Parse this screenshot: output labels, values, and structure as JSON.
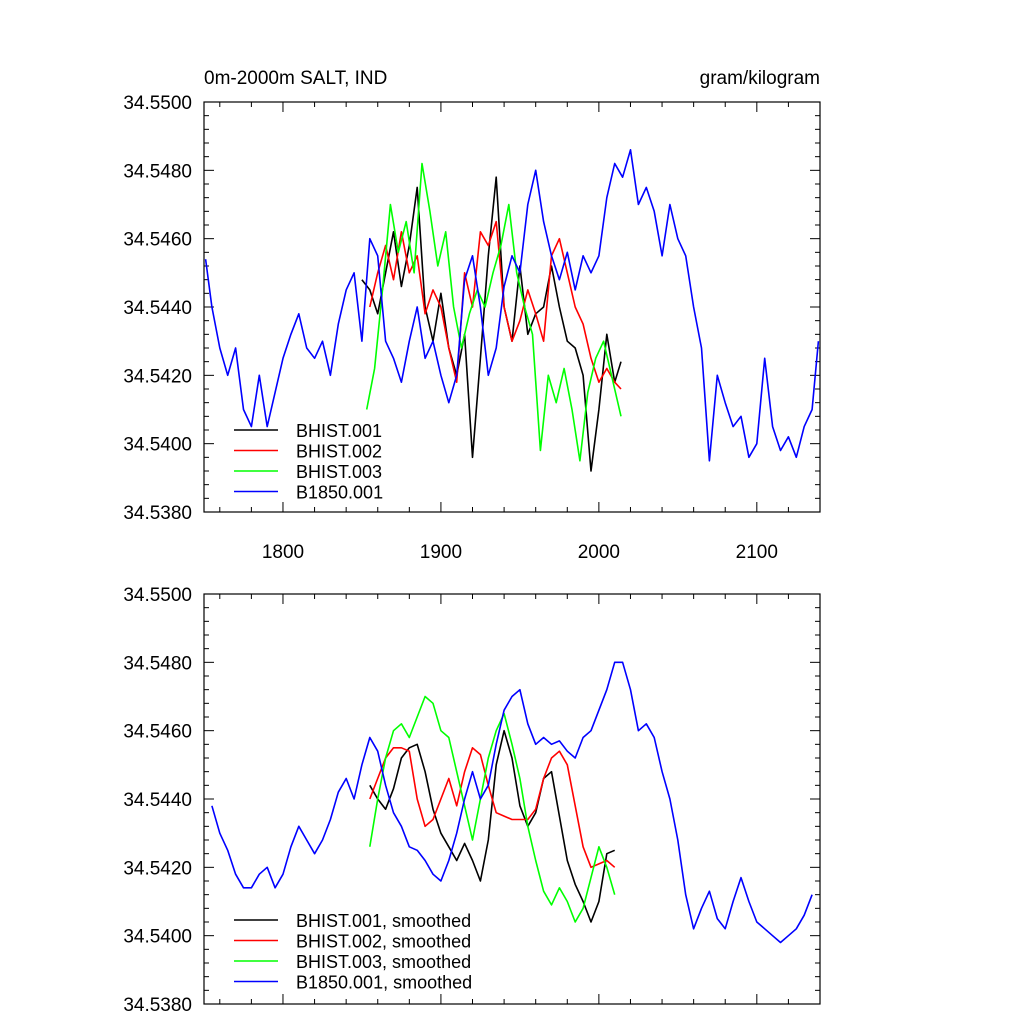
{
  "chart_data": [
    {
      "type": "line",
      "title_left": "0m-2000m SALT, IND",
      "title_right": "gram/kilogram",
      "xlim": [
        1750,
        2140
      ],
      "ylim": [
        34.538,
        34.55
      ],
      "x_ticks": [
        1800,
        1900,
        2000,
        2100
      ],
      "x_tick_labels": [
        "1800",
        "1900",
        "2000",
        "2100"
      ],
      "y_ticks": [
        34.538,
        34.54,
        34.542,
        34.544,
        34.546,
        34.548,
        34.55
      ],
      "y_tick_labels": [
        "34.5380",
        "34.5400",
        "34.5420",
        "34.5440",
        "34.5460",
        "34.5480",
        "34.5500"
      ],
      "legend": [
        "BHIST.001",
        "BHIST.002",
        "BHIST.003",
        "B1850.001"
      ],
      "legend_position": "bottom-left",
      "series": [
        {
          "name": "BHIST.001",
          "color": "#000000",
          "x": [
            1850,
            1855,
            1860,
            1865,
            1870,
            1875,
            1880,
            1885,
            1890,
            1895,
            1900,
            1905,
            1910,
            1915,
            1920,
            1925,
            1930,
            1935,
            1940,
            1945,
            1950,
            1955,
            1960,
            1965,
            1970,
            1975,
            1980,
            1985,
            1990,
            1995,
            2000,
            2005,
            2010,
            2014
          ],
          "values": [
            34.5448,
            34.5445,
            34.5438,
            34.545,
            34.5462,
            34.5446,
            34.5458,
            34.5475,
            34.544,
            34.543,
            34.5444,
            34.5428,
            34.542,
            34.5432,
            34.5396,
            34.5425,
            34.5455,
            34.5478,
            34.544,
            34.543,
            34.5452,
            34.5432,
            34.5438,
            34.544,
            34.5452,
            34.544,
            34.543,
            34.5428,
            34.542,
            34.5392,
            34.541,
            34.5432,
            34.5418,
            34.5424
          ]
        },
        {
          "name": "BHIST.002",
          "color": "#ff0000",
          "x": [
            1855,
            1860,
            1865,
            1870,
            1875,
            1880,
            1885,
            1890,
            1895,
            1900,
            1905,
            1910,
            1915,
            1920,
            1925,
            1930,
            1935,
            1940,
            1945,
            1950,
            1955,
            1960,
            1965,
            1970,
            1975,
            1980,
            1985,
            1990,
            1995,
            2000,
            2005,
            2010,
            2014
          ],
          "values": [
            34.544,
            34.545,
            34.5458,
            34.5448,
            34.5462,
            34.545,
            34.5455,
            34.5438,
            34.5445,
            34.544,
            34.5428,
            34.5418,
            34.545,
            34.544,
            34.5462,
            34.5458,
            34.5465,
            34.544,
            34.543,
            34.5436,
            34.5445,
            34.5438,
            34.543,
            34.5455,
            34.546,
            34.545,
            34.544,
            34.5435,
            34.5425,
            34.5418,
            34.5422,
            34.5418,
            34.5416
          ]
        },
        {
          "name": "BHIST.003",
          "color": "#00ff00",
          "x": [
            1853,
            1858,
            1863,
            1868,
            1873,
            1878,
            1883,
            1888,
            1893,
            1898,
            1903,
            1908,
            1913,
            1918,
            1923,
            1928,
            1933,
            1938,
            1943,
            1948,
            1953,
            1958,
            1963,
            1968,
            1973,
            1978,
            1983,
            1988,
            1993,
            1998,
            2003,
            2008,
            2014
          ],
          "values": [
            34.541,
            34.5422,
            34.5445,
            34.547,
            34.5456,
            34.5465,
            34.545,
            34.5482,
            34.5468,
            34.5452,
            34.5462,
            34.544,
            34.5428,
            34.5438,
            34.5445,
            34.544,
            34.545,
            34.5458,
            34.547,
            34.545,
            34.544,
            34.5432,
            34.5398,
            34.542,
            34.5412,
            34.5422,
            34.541,
            34.5395,
            34.5415,
            34.5425,
            34.543,
            34.542,
            34.5408
          ]
        },
        {
          "name": "B1850.001",
          "color": "#0000ff",
          "x": [
            1751,
            1755,
            1760,
            1765,
            1770,
            1775,
            1780,
            1785,
            1790,
            1795,
            1800,
            1805,
            1810,
            1815,
            1820,
            1825,
            1830,
            1835,
            1840,
            1845,
            1850,
            1855,
            1860,
            1865,
            1870,
            1875,
            1880,
            1885,
            1890,
            1895,
            1900,
            1905,
            1910,
            1915,
            1920,
            1925,
            1930,
            1935,
            1940,
            1945,
            1950,
            1955,
            1960,
            1965,
            1970,
            1975,
            1980,
            1985,
            1990,
            1995,
            2000,
            2005,
            2010,
            2015,
            2020,
            2025,
            2030,
            2035,
            2040,
            2045,
            2050,
            2055,
            2060,
            2065,
            2070,
            2075,
            2080,
            2085,
            2090,
            2095,
            2100,
            2105,
            2110,
            2115,
            2120,
            2125,
            2130,
            2135,
            2139
          ],
          "values": [
            34.5454,
            34.544,
            34.5428,
            34.542,
            34.5428,
            34.541,
            34.5405,
            34.542,
            34.5405,
            34.5415,
            34.5425,
            34.5432,
            34.5438,
            34.5428,
            34.5425,
            34.543,
            34.542,
            34.5435,
            34.5445,
            34.545,
            34.543,
            34.546,
            34.5455,
            34.543,
            34.5425,
            34.5418,
            34.543,
            34.544,
            34.5425,
            34.543,
            34.542,
            34.5412,
            34.542,
            34.5448,
            34.5455,
            34.544,
            34.542,
            34.5428,
            34.5446,
            34.5455,
            34.545,
            34.547,
            34.548,
            34.5465,
            34.5455,
            34.5448,
            34.5456,
            34.5445,
            34.5455,
            34.545,
            34.5455,
            34.5472,
            34.5482,
            34.5478,
            34.5486,
            34.547,
            34.5475,
            34.5468,
            34.5455,
            34.547,
            34.546,
            34.5455,
            34.544,
            34.5428,
            34.5395,
            34.542,
            34.5412,
            34.5405,
            34.5408,
            34.5396,
            34.54,
            34.5425,
            34.5405,
            34.5398,
            34.5402,
            34.5396,
            34.5405,
            34.541,
            34.543
          ]
        }
      ]
    },
    {
      "type": "line",
      "xlim": [
        1750,
        2140
      ],
      "ylim": [
        34.538,
        34.55
      ],
      "x_ticks": [
        1800,
        1900,
        2000,
        2100
      ],
      "y_ticks": [
        34.538,
        34.54,
        34.542,
        34.544,
        34.546,
        34.548,
        34.55
      ],
      "y_tick_labels": [
        "34.5380",
        "34.5400",
        "34.5420",
        "34.5440",
        "34.5460",
        "34.5480",
        "34.5500"
      ],
      "legend": [
        "BHIST.001, smoothed",
        "BHIST.002, smoothed",
        "BHIST.003, smoothed",
        "B1850.001, smoothed"
      ],
      "legend_position": "bottom-left",
      "series": [
        {
          "name": "BHIST.001, smoothed",
          "color": "#000000",
          "x": [
            1855,
            1860,
            1865,
            1870,
            1875,
            1880,
            1885,
            1890,
            1895,
            1900,
            1905,
            1910,
            1915,
            1920,
            1925,
            1930,
            1935,
            1940,
            1945,
            1950,
            1955,
            1960,
            1965,
            1970,
            1975,
            1980,
            1985,
            1990,
            1995,
            2000,
            2005,
            2010
          ],
          "values": [
            34.5444,
            34.544,
            34.5437,
            34.5443,
            34.5452,
            34.5455,
            34.5456,
            34.5448,
            34.5437,
            34.543,
            34.5426,
            34.5422,
            34.5427,
            34.5422,
            34.5416,
            34.5428,
            34.545,
            34.546,
            34.5452,
            34.5438,
            34.5432,
            34.5436,
            34.5446,
            34.5448,
            34.5435,
            34.5422,
            34.5415,
            34.541,
            34.5404,
            34.541,
            34.5424,
            34.5425
          ]
        },
        {
          "name": "BHIST.002, smoothed",
          "color": "#ff0000",
          "x": [
            1855,
            1860,
            1865,
            1870,
            1875,
            1880,
            1885,
            1890,
            1895,
            1900,
            1905,
            1910,
            1915,
            1920,
            1925,
            1930,
            1935,
            1940,
            1945,
            1950,
            1955,
            1960,
            1965,
            1970,
            1975,
            1980,
            1985,
            1990,
            1995,
            2000,
            2005,
            2010
          ],
          "values": [
            34.544,
            34.5446,
            34.5452,
            34.5455,
            34.5455,
            34.5454,
            34.544,
            34.5432,
            34.5434,
            34.544,
            34.5446,
            34.5438,
            34.5448,
            34.5455,
            34.5453,
            34.5444,
            34.5436,
            34.5435,
            34.5434,
            34.5434,
            34.5434,
            34.5437,
            34.5446,
            34.5452,
            34.5454,
            34.545,
            34.5438,
            34.5426,
            34.542,
            34.5421,
            34.5422,
            34.542
          ]
        },
        {
          "name": "BHIST.003, smoothed",
          "color": "#00ff00",
          "x": [
            1855,
            1860,
            1865,
            1870,
            1875,
            1880,
            1885,
            1890,
            1895,
            1900,
            1905,
            1910,
            1915,
            1920,
            1925,
            1930,
            1935,
            1940,
            1945,
            1950,
            1955,
            1960,
            1965,
            1970,
            1975,
            1980,
            1985,
            1990,
            1995,
            2000,
            2005,
            2010
          ],
          "values": [
            34.5426,
            34.544,
            34.5452,
            34.546,
            34.5462,
            34.5458,
            34.5464,
            34.547,
            34.5468,
            34.546,
            34.5458,
            34.5448,
            34.5438,
            34.5428,
            34.544,
            34.5452,
            34.546,
            34.5465,
            34.5456,
            34.5446,
            34.5432,
            34.5422,
            34.5413,
            34.5409,
            34.5414,
            34.541,
            34.5404,
            34.5408,
            34.5417,
            34.5426,
            34.542,
            34.5412
          ]
        },
        {
          "name": "B1850.001, smoothed",
          "color": "#0000ff",
          "x": [
            1755,
            1760,
            1765,
            1770,
            1775,
            1780,
            1785,
            1790,
            1795,
            1800,
            1805,
            1810,
            1815,
            1820,
            1825,
            1830,
            1835,
            1840,
            1845,
            1850,
            1855,
            1860,
            1865,
            1870,
            1875,
            1880,
            1885,
            1890,
            1895,
            1900,
            1905,
            1910,
            1915,
            1920,
            1925,
            1930,
            1935,
            1940,
            1945,
            1950,
            1955,
            1960,
            1965,
            1970,
            1975,
            1980,
            1985,
            1990,
            1995,
            2000,
            2005,
            2010,
            2015,
            2020,
            2025,
            2030,
            2035,
            2040,
            2045,
            2050,
            2055,
            2060,
            2065,
            2070,
            2075,
            2080,
            2085,
            2090,
            2095,
            2100,
            2105,
            2110,
            2115,
            2120,
            2125,
            2130,
            2135
          ],
          "values": [
            34.5438,
            34.543,
            34.5425,
            34.5418,
            34.5414,
            34.5414,
            34.5418,
            34.542,
            34.5414,
            34.5418,
            34.5426,
            34.5432,
            34.5428,
            34.5424,
            34.5428,
            34.5434,
            34.5442,
            34.5446,
            34.544,
            34.545,
            34.5458,
            34.5454,
            34.5444,
            34.5436,
            34.5432,
            34.5426,
            34.5425,
            34.5422,
            34.5418,
            34.5416,
            34.5422,
            34.543,
            34.544,
            34.5448,
            34.544,
            34.5444,
            34.5456,
            34.5466,
            34.547,
            34.5472,
            34.5462,
            34.5456,
            34.5458,
            34.5456,
            34.5457,
            34.5454,
            34.5452,
            34.5458,
            34.546,
            34.5466,
            34.5472,
            34.548,
            34.548,
            34.5472,
            34.546,
            34.5462,
            34.5458,
            34.5448,
            34.544,
            34.5428,
            34.5412,
            34.5402,
            34.5408,
            34.5413,
            34.5405,
            34.5402,
            34.541,
            34.5417,
            34.541,
            34.5404,
            34.5402,
            34.54,
            34.5398,
            34.54,
            34.5402,
            34.5406,
            34.5412
          ]
        }
      ]
    }
  ]
}
